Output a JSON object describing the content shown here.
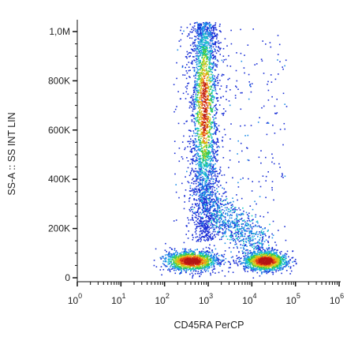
{
  "chart_data": {
    "type": "scatter",
    "style": "density-dot-plot",
    "xlabel": "CD45RA PerCP",
    "ylabel": "SS-A :: SS INT LIN",
    "x_scale": "log",
    "xlim": [
      1,
      1000000
    ],
    "ylim": [
      0,
      1050000
    ],
    "x_ticks": [
      {
        "base": "10",
        "exp": "0",
        "value": 1
      },
      {
        "base": "10",
        "exp": "1",
        "value": 10
      },
      {
        "base": "10",
        "exp": "2",
        "value": 100
      },
      {
        "base": "10",
        "exp": "3",
        "value": 1000
      },
      {
        "base": "10",
        "exp": "4",
        "value": 10000
      },
      {
        "base": "10",
        "exp": "5",
        "value": 100000
      },
      {
        "base": "10",
        "exp": "6",
        "value": 1000000
      }
    ],
    "y_ticks": [
      {
        "label": "0",
        "value": 0
      },
      {
        "label": "200K",
        "value": 200000
      },
      {
        "label": "400K",
        "value": 400000
      },
      {
        "label": "600K",
        "value": 600000
      },
      {
        "label": "800K",
        "value": 800000
      },
      {
        "label": "1,0M",
        "value": 1000000
      }
    ],
    "grid": false,
    "colormap": [
      "#1a2fd6",
      "#1e8fe8",
      "#19c8c8",
      "#3cc83c",
      "#c8d21e",
      "#f0a014",
      "#e03c14",
      "#b41414"
    ],
    "populations": [
      {
        "x_center": 800,
        "x_spread_log": 0.13,
        "y_min": 150000,
        "y_max": 1040000,
        "y_peak": 700000,
        "density": "high"
      },
      {
        "x_center": 400,
        "x_spread_log": 0.3,
        "y_center": 70000,
        "y_spread": 20000,
        "density": "high"
      },
      {
        "x_center": 20000,
        "x_spread_log": 0.25,
        "y_center": 70000,
        "y_spread": 20000,
        "density": "high"
      }
    ]
  }
}
